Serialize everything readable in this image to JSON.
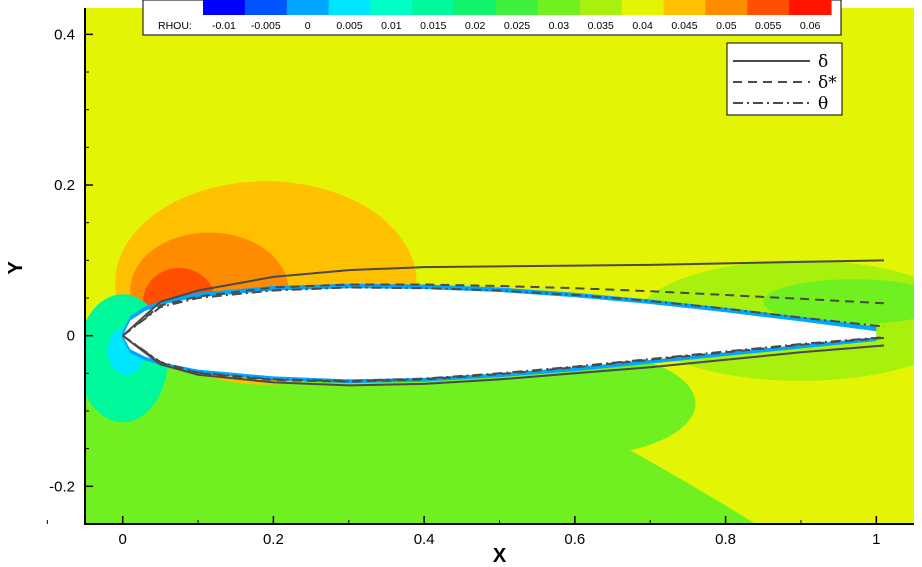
{
  "chart_data": {
    "type": "contour",
    "xlabel": "X",
    "ylabel": "Y",
    "xlim": [
      -0.05,
      1.05
    ],
    "ylim": [
      -0.25,
      0.435
    ],
    "xticks": [
      "0",
      "0.2",
      "0.4",
      "0.6",
      "0.8",
      "1"
    ],
    "yticks": [
      "-0.2",
      "0",
      "0.2",
      "0.4"
    ],
    "xtick_values": [
      0,
      0.2,
      0.4,
      0.6,
      0.8,
      1.0
    ],
    "ytick_values": [
      -0.2,
      0,
      0.2,
      0.4
    ],
    "colorbar": {
      "variable": "RHOU:",
      "placement": "top",
      "levels": [
        "-0.01",
        "-0.005",
        "0",
        "0.005",
        "0.01",
        "0.015",
        "0.02",
        "0.025",
        "0.03",
        "0.035",
        "0.04",
        "0.045",
        "0.05",
        "0.055",
        "0.06"
      ],
      "colors": [
        "#0000ff",
        "#0055ff",
        "#00a6ff",
        "#00e5ff",
        "#00ffc4",
        "#00f89a",
        "#11f26d",
        "#3cf03c",
        "#70f020",
        "#a8f00e",
        "#e3f505",
        "#ffc000",
        "#ff8c00",
        "#ff4f00",
        "#ff1400"
      ]
    },
    "field_colors": {
      "freestream": "#e3f505",
      "lower_region": "#70f020",
      "wake": "#a8f00e",
      "suction_lobe": "#ffc000",
      "inner_lobe": "#ff8c00",
      "peak_lobe": "#ff4f00",
      "stagnation": "#00f89a",
      "stagnation_core": "#00e5ff",
      "boundary_layer": "#00a6ff",
      "airfoil": "#ffffff"
    },
    "series": [
      {
        "name": "δ",
        "style": "solid",
        "upper": [
          [
            0.0,
            0.0
          ],
          [
            0.05,
            0.045
          ],
          [
            0.1,
            0.06
          ],
          [
            0.2,
            0.078
          ],
          [
            0.3,
            0.087
          ],
          [
            0.4,
            0.091
          ],
          [
            0.5,
            0.092
          ],
          [
            0.6,
            0.093
          ],
          [
            0.7,
            0.094
          ],
          [
            0.8,
            0.096
          ],
          [
            0.9,
            0.098
          ],
          [
            1.01,
            0.1
          ]
        ],
        "lower": [
          [
            0.0,
            0.0
          ],
          [
            0.05,
            -0.038
          ],
          [
            0.1,
            -0.052
          ],
          [
            0.2,
            -0.062
          ],
          [
            0.3,
            -0.066
          ],
          [
            0.4,
            -0.064
          ],
          [
            0.5,
            -0.058
          ],
          [
            0.6,
            -0.05
          ],
          [
            0.7,
            -0.042
          ],
          [
            0.8,
            -0.032
          ],
          [
            0.9,
            -0.022
          ],
          [
            1.01,
            -0.013
          ]
        ]
      },
      {
        "name": "δ*",
        "style": "dashed",
        "upper": [
          [
            0.0,
            0.0
          ],
          [
            0.05,
            0.04
          ],
          [
            0.1,
            0.052
          ],
          [
            0.2,
            0.064
          ],
          [
            0.3,
            0.068
          ],
          [
            0.4,
            0.068
          ],
          [
            0.5,
            0.066
          ],
          [
            0.6,
            0.063
          ],
          [
            0.7,
            0.059
          ],
          [
            0.8,
            0.054
          ],
          [
            0.9,
            0.049
          ],
          [
            1.01,
            0.043
          ]
        ],
        "lower": [
          [
            0.0,
            0.0
          ],
          [
            0.05,
            -0.036
          ],
          [
            0.1,
            -0.05
          ],
          [
            0.2,
            -0.059
          ],
          [
            0.3,
            -0.061
          ],
          [
            0.4,
            -0.058
          ],
          [
            0.5,
            -0.051
          ],
          [
            0.6,
            -0.042
          ],
          [
            0.7,
            -0.032
          ],
          [
            0.8,
            -0.022
          ],
          [
            0.9,
            -0.012
          ],
          [
            1.01,
            -0.003
          ]
        ]
      },
      {
        "name": "θ",
        "style": "dashdot",
        "upper": [
          [
            0.0,
            0.0
          ],
          [
            0.05,
            0.038
          ],
          [
            0.1,
            0.05
          ],
          [
            0.2,
            0.06
          ],
          [
            0.3,
            0.064
          ],
          [
            0.4,
            0.063
          ],
          [
            0.5,
            0.06
          ],
          [
            0.6,
            0.054
          ],
          [
            0.7,
            0.046
          ],
          [
            0.8,
            0.036
          ],
          [
            0.9,
            0.024
          ],
          [
            1.01,
            0.012
          ]
        ],
        "lower": [
          [
            0.0,
            0.0
          ],
          [
            0.05,
            -0.035
          ],
          [
            0.1,
            -0.049
          ],
          [
            0.2,
            -0.058
          ],
          [
            0.3,
            -0.06
          ],
          [
            0.4,
            -0.057
          ],
          [
            0.5,
            -0.05
          ],
          [
            0.6,
            -0.041
          ],
          [
            0.7,
            -0.031
          ],
          [
            0.8,
            -0.021
          ],
          [
            0.9,
            -0.011
          ],
          [
            1.01,
            -0.002
          ]
        ]
      }
    ],
    "airfoil": {
      "upper": [
        [
          0.0,
          0.0
        ],
        [
          0.01,
          0.02
        ],
        [
          0.03,
          0.033
        ],
        [
          0.06,
          0.043
        ],
        [
          0.1,
          0.051
        ],
        [
          0.2,
          0.06
        ],
        [
          0.3,
          0.063
        ],
        [
          0.4,
          0.062
        ],
        [
          0.5,
          0.058
        ],
        [
          0.6,
          0.051
        ],
        [
          0.7,
          0.042
        ],
        [
          0.8,
          0.031
        ],
        [
          0.9,
          0.019
        ],
        [
          1.0,
          0.006
        ]
      ],
      "lower": [
        [
          0.0,
          0.0
        ],
        [
          0.01,
          -0.018
        ],
        [
          0.03,
          -0.028
        ],
        [
          0.06,
          -0.037
        ],
        [
          0.1,
          -0.045
        ],
        [
          0.2,
          -0.054
        ],
        [
          0.3,
          -0.058
        ],
        [
          0.4,
          -0.056
        ],
        [
          0.5,
          -0.05
        ],
        [
          0.6,
          -0.042
        ],
        [
          0.7,
          -0.032
        ],
        [
          0.8,
          -0.022
        ],
        [
          0.9,
          -0.012
        ],
        [
          1.0,
          -0.002
        ]
      ]
    },
    "legend": {
      "placement": "top-right"
    }
  }
}
